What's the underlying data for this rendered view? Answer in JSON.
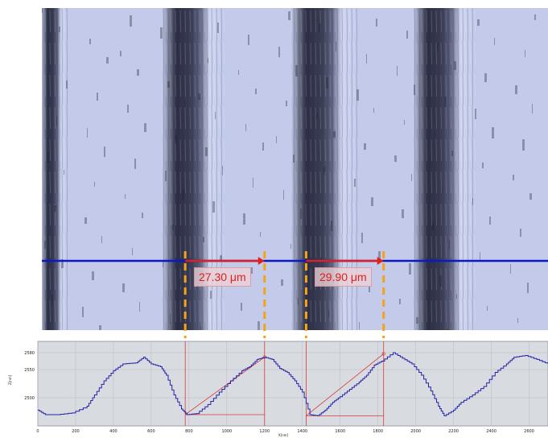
{
  "micrograph": {
    "measurements": [
      {
        "label": "27.30 μm"
      },
      {
        "label": "29.90 μm"
      }
    ],
    "colors": {
      "scan_line": "#0a18c8",
      "measure_arrow": "#e0201c",
      "dashed_marker": "#f5a316",
      "surface_light": "#c6cdea",
      "surface_dark": "#2c2f45"
    }
  },
  "profile": {
    "y_axis_title": "Z[nm]",
    "x_axis_title": "X[nm]",
    "chart_data": {
      "type": "line",
      "title": "",
      "xlabel": "X[nm]",
      "ylabel": "Z[nm]",
      "xlim": [
        0,
        2700
      ],
      "ylim": [
        2450,
        2600
      ],
      "x_ticks": [
        "0",
        "200",
        "400",
        "600",
        "800",
        "1000",
        "1200",
        "1400",
        "1600",
        "1800",
        "2000",
        "2200",
        "2400",
        "2600"
      ],
      "y_ticks": [
        "2500",
        "2550",
        "2580"
      ],
      "grid": true,
      "series": [
        {
          "x": [
            0,
            40,
            100,
            180,
            260,
            300,
            350,
            400,
            450,
            520,
            560,
            600,
            650,
            680,
            720,
            760,
            790,
            840,
            900,
            960,
            1020,
            1080,
            1120,
            1160,
            1200,
            1240,
            1280,
            1320,
            1360,
            1400,
            1440,
            1480,
            1520,
            1560,
            1600,
            1650,
            1700,
            1740,
            1780,
            1820,
            1880,
            1930,
            1980,
            2030,
            2080,
            2120,
            2150,
            2200,
            2240,
            2300,
            2360,
            2420,
            2480,
            2520,
            2580,
            2640,
            2700
          ],
          "y": [
            2478,
            2470,
            2470,
            2473,
            2485,
            2505,
            2530,
            2548,
            2560,
            2562,
            2572,
            2560,
            2555,
            2540,
            2505,
            2480,
            2470,
            2472,
            2488,
            2510,
            2530,
            2548,
            2555,
            2568,
            2572,
            2568,
            2552,
            2545,
            2530,
            2510,
            2470,
            2468,
            2478,
            2492,
            2502,
            2515,
            2528,
            2540,
            2558,
            2565,
            2580,
            2570,
            2560,
            2540,
            2512,
            2485,
            2468,
            2478,
            2492,
            2505,
            2520,
            2545,
            2560,
            2572,
            2575,
            2568,
            2560
          ]
        }
      ],
      "markers": [
        {
          "x_start": 780,
          "x_end": 1200,
          "y_start": 2470,
          "y_end": 2572
        },
        {
          "x_start": 1420,
          "x_end": 1830,
          "y_start": 2468,
          "y_end": 2578
        }
      ],
      "colors": {
        "line": "#2323a8",
        "marker": "#d9383a",
        "background": "#d8dbe0",
        "grid": "#b8bcc4"
      }
    }
  }
}
